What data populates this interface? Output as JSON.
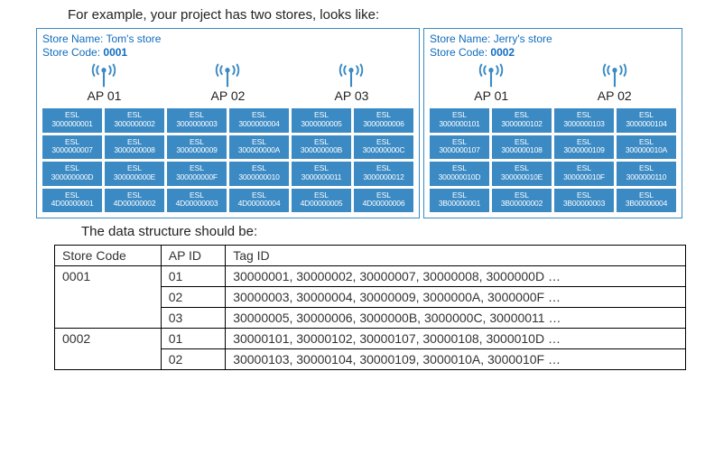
{
  "intro": "For example, your project has two stores, looks like:",
  "mid": "The data structure should be:",
  "store_name_label": "Store Name:",
  "store_code_label": "Store Code:",
  "esl_label": "ESL",
  "ap_color": "#3b8ac4",
  "stores": [
    {
      "name": "Tom's store",
      "code": "0001",
      "aps": [
        "AP 01",
        "AP 02",
        "AP 03"
      ],
      "esls": [
        "3000000001",
        "3000000002",
        "3000000003",
        "3000000004",
        "3000000005",
        "3000000006",
        "3000000007",
        "3000000008",
        "3000000009",
        "300000000A",
        "300000000B",
        "300000000C",
        "300000000D",
        "300000000E",
        "300000000F",
        "3000000010",
        "3000000011",
        "3000000012",
        "4D00000001",
        "4D00000002",
        "4D00000003",
        "4D00000004",
        "4D00000005",
        "4D00000006"
      ]
    },
    {
      "name": "Jerry's store",
      "code": "0002",
      "aps": [
        "AP 01",
        "AP 02"
      ],
      "esls": [
        "3000000101",
        "3000000102",
        "3000000103",
        "3000000104",
        "3000000107",
        "3000000108",
        "3000000109",
        "300000010A",
        "300000010D",
        "300000010E",
        "300000010F",
        "3000000110",
        "3B00000001",
        "3B00000002",
        "3B00000003",
        "3B00000004"
      ]
    }
  ],
  "table": {
    "headers": [
      "Store Code",
      "AP ID",
      "Tag ID"
    ],
    "groups": [
      {
        "store_code": "0001",
        "rows": [
          {
            "ap": "01",
            "tags": "30000001, 30000002, 30000007, 30000008, 3000000D …"
          },
          {
            "ap": "02",
            "tags": "30000003, 30000004, 30000009, 3000000A, 3000000F …"
          },
          {
            "ap": "03",
            "tags": "30000005, 30000006, 3000000B, 3000000C, 30000011 …"
          }
        ]
      },
      {
        "store_code": "0002",
        "rows": [
          {
            "ap": "01",
            "tags": "30000101, 30000102, 30000107, 30000108, 3000010D …"
          },
          {
            "ap": "02",
            "tags": "30000103, 30000104, 30000109, 3000010A, 3000010F …"
          }
        ]
      }
    ]
  }
}
